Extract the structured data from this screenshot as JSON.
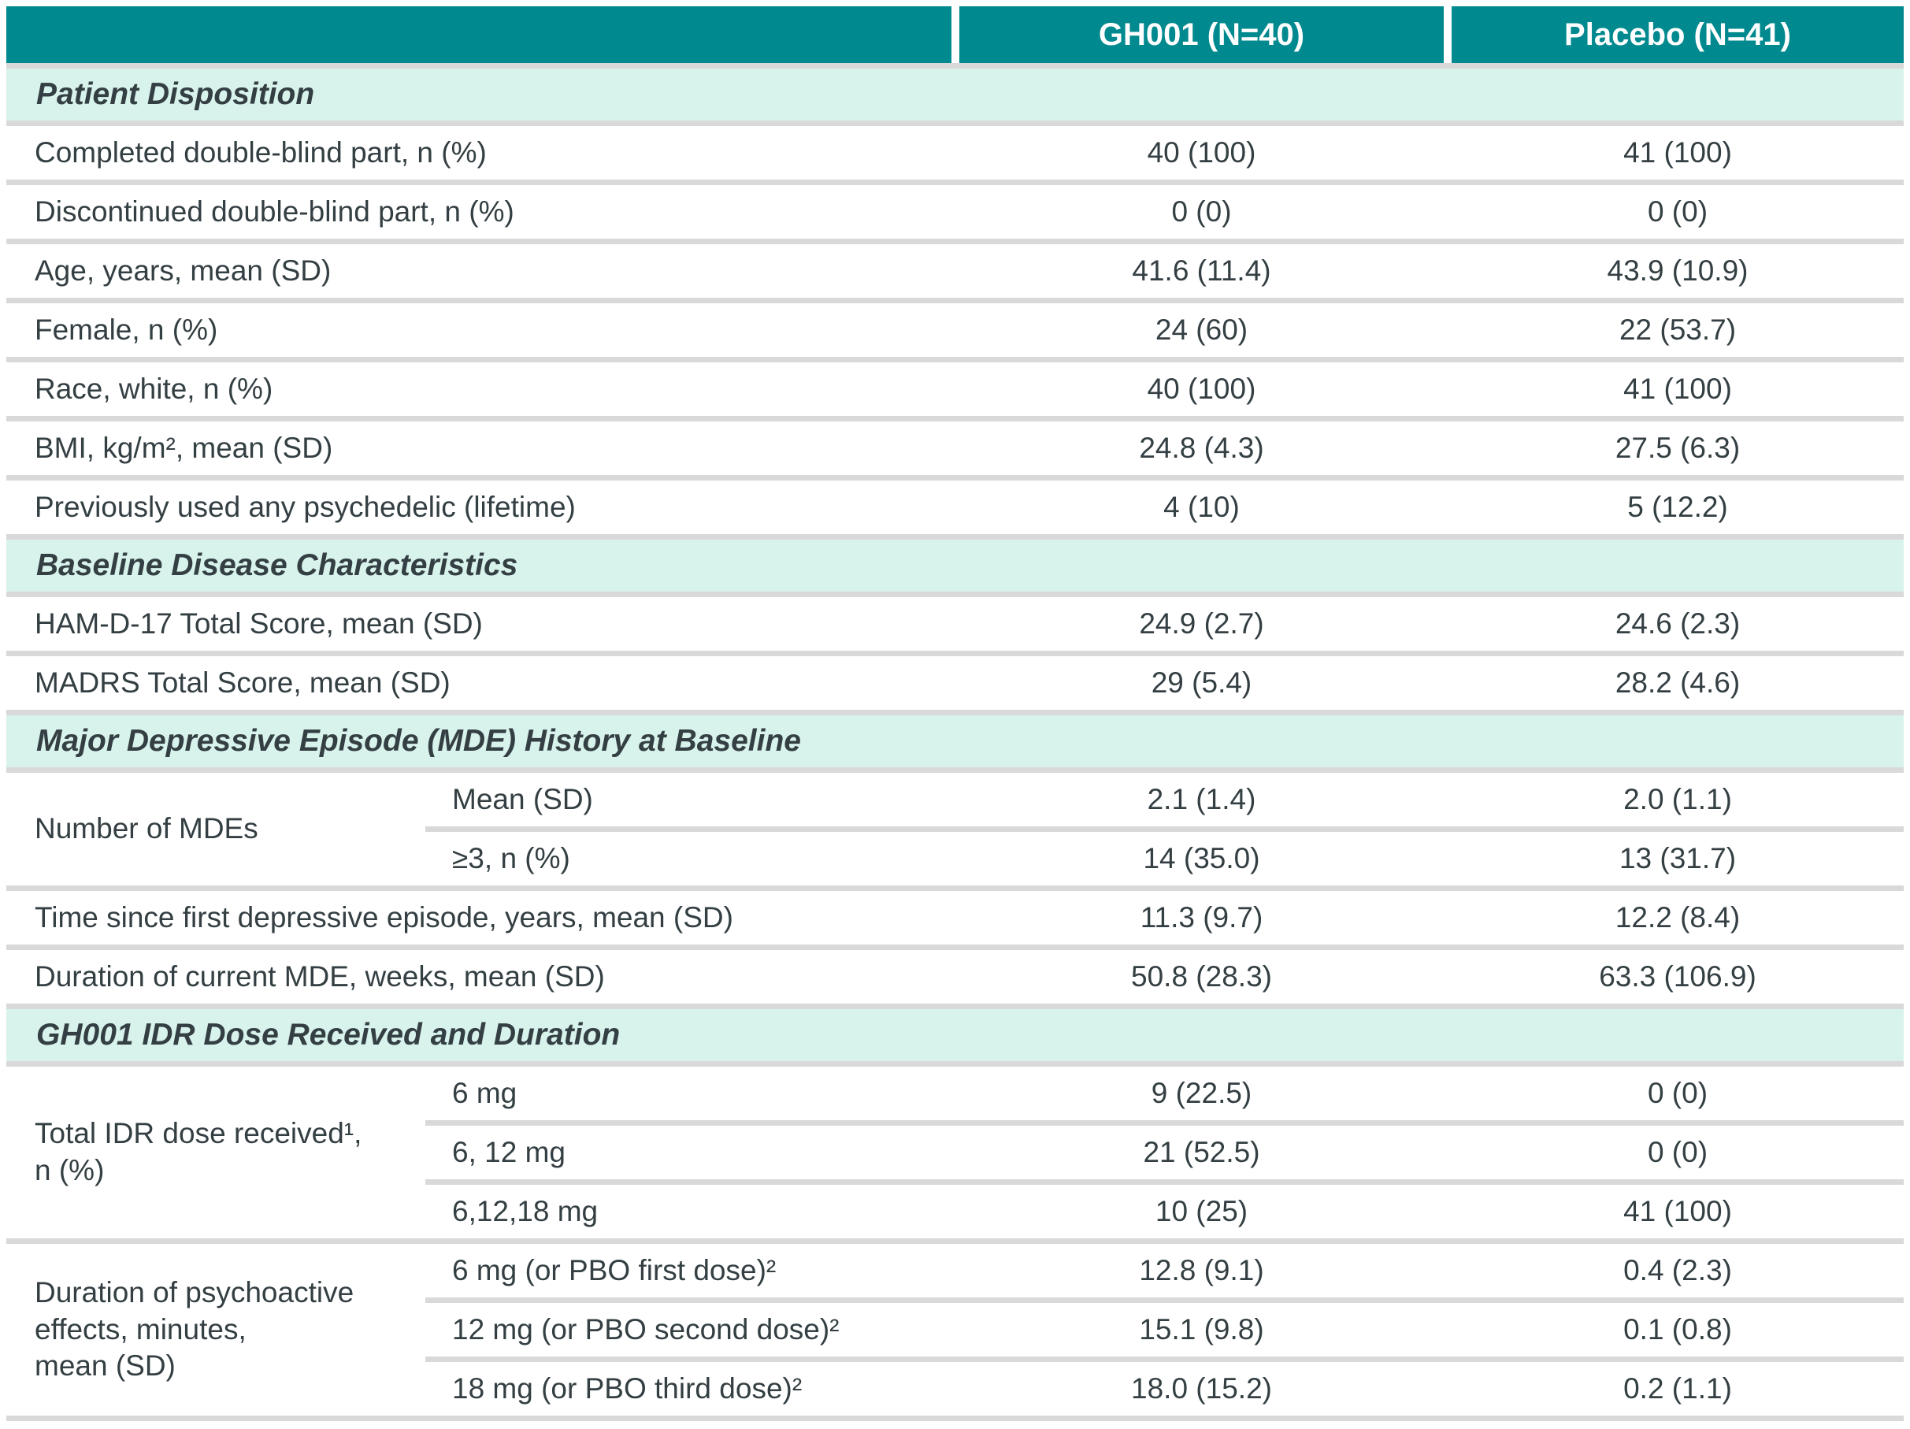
{
  "colors": {
    "header_teal": "#00898e",
    "section_mint": "#d8f2ec",
    "separator_gray": "#d9d9d9",
    "body_text": "#343f43",
    "header_text": "#ffffff"
  },
  "table": {
    "header": {
      "product": "GH001 (N=40)",
      "placebo": "Placebo (N=41)"
    },
    "sections": [
      {
        "title": "Patient Disposition",
        "rows": [
          {
            "label": "Completed double-blind part, n (%)",
            "gh001": "40 (100)",
            "placebo": "41 (100)"
          },
          {
            "label": "Discontinued double-blind part, n (%)",
            "gh001": "0 (0)",
            "placebo": "0 (0)"
          },
          {
            "label": "Age, years, mean (SD)",
            "gh001": "41.6 (11.4)",
            "placebo": "43.9 (10.9)"
          },
          {
            "label": "Female, n (%)",
            "gh001": "24 (60)",
            "placebo": "22 (53.7)"
          },
          {
            "label": "Race, white, n (%)",
            "gh001": "40 (100)",
            "placebo": "41 (100)"
          },
          {
            "label": "BMI, kg/m², mean (SD)",
            "gh001": "24.8 (4.3)",
            "placebo": "27.5 (6.3)"
          },
          {
            "label": "Previously used any psychedelic (lifetime)",
            "gh001": "4 (10)",
            "placebo": "5 (12.2)"
          }
        ]
      },
      {
        "title": "Baseline Disease Characteristics",
        "rows": [
          {
            "label": "HAM-D-17 Total Score, mean (SD)",
            "gh001": "24.9 (2.7)",
            "placebo": "24.6 (2.3)"
          },
          {
            "label": "MADRS Total Score, mean (SD)",
            "gh001": "29 (5.4)",
            "placebo": "28.2 (4.6)"
          }
        ]
      },
      {
        "title": "Major Depressive Episode (MDE) History at Baseline",
        "group": {
          "label": "Number of MDEs",
          "subrows": [
            {
              "label": "Mean (SD)",
              "gh001": "2.1 (1.4)",
              "placebo": "2.0 (1.1)"
            },
            {
              "label": "≥3, n (%)",
              "gh001": "14 (35.0)",
              "placebo": "13 (31.7)"
            }
          ]
        },
        "rows": [
          {
            "label": "Time since first depressive episode, years, mean (SD)",
            "gh001": "11.3 (9.7)",
            "placebo": "12.2 (8.4)"
          },
          {
            "label": "Duration of current MDE, weeks, mean (SD)",
            "gh001": "50.8 (28.3)",
            "placebo": "63.3 (106.9)"
          }
        ]
      },
      {
        "title": "GH001 IDR Dose Received and Duration",
        "groups": [
          {
            "label": "Total IDR dose received¹,\nn (%)",
            "subrows": [
              {
                "label": "6 mg",
                "gh001": "9 (22.5)",
                "placebo": "0 (0)"
              },
              {
                "label": "6, 12 mg",
                "gh001": "21 (52.5)",
                "placebo": "0 (0)"
              },
              {
                "label": "6,12,18 mg",
                "gh001": "10 (25)",
                "placebo": "41 (100)"
              }
            ]
          },
          {
            "label": "Duration of psychoactive\neffects, minutes,\nmean (SD)",
            "subrows": [
              {
                "label": "6 mg (or PBO first dose)²",
                "gh001": "12.8 (9.1)",
                "placebo": "0.4 (2.3)"
              },
              {
                "label": "12 mg (or PBO second dose)²",
                "gh001": "15.1 (9.8)",
                "placebo": "0.1 (0.8)"
              },
              {
                "label": "18 mg (or PBO third dose)²",
                "gh001": "18.0 (15.2)",
                "placebo": "0.2 (1.1)"
              }
            ]
          }
        ]
      }
    ]
  }
}
